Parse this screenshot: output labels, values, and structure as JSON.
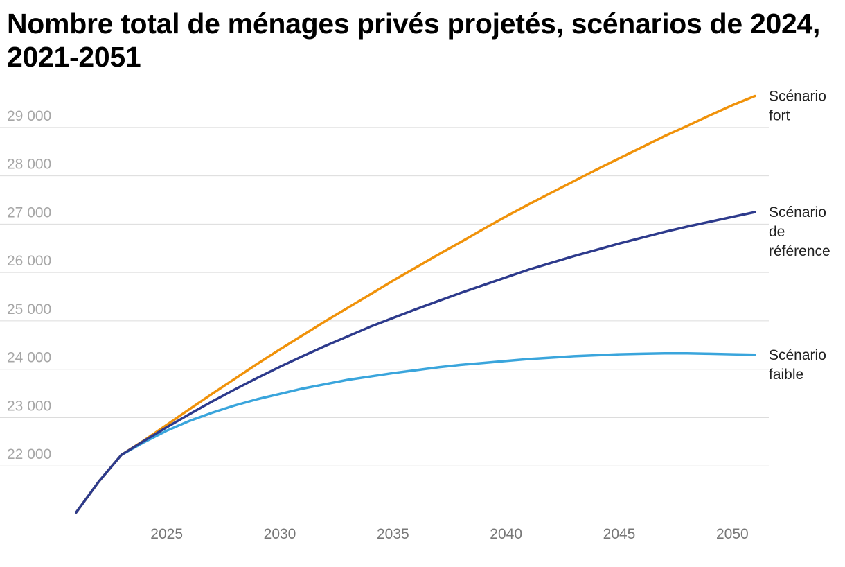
{
  "chart_data": {
    "type": "line",
    "title": "Nombre total de ménages privés projetés, scénarios de 2024, 2021-2051",
    "xlabel": "",
    "ylabel": "",
    "xlim": [
      2021,
      2051
    ],
    "ylim": [
      21000,
      29600
    ],
    "grid": true,
    "legend": "end-of-line labels",
    "y_ticks": [
      22000,
      23000,
      24000,
      25000,
      26000,
      27000,
      28000,
      29000
    ],
    "y_tick_labels": [
      "22 000",
      "23 000",
      "24 000",
      "25 000",
      "26 000",
      "27 000",
      "28 000",
      "29 000"
    ],
    "x_ticks": [
      2025,
      2030,
      2035,
      2040,
      2045,
      2050
    ],
    "x_tick_labels": [
      "2025",
      "2030",
      "2035",
      "2040",
      "2045",
      "2050"
    ],
    "x": [
      2021,
      2022,
      2023,
      2024,
      2025,
      2026,
      2027,
      2028,
      2029,
      2030,
      2031,
      2032,
      2033,
      2034,
      2035,
      2036,
      2037,
      2038,
      2039,
      2040,
      2041,
      2042,
      2043,
      2044,
      2045,
      2046,
      2047,
      2048,
      2049,
      2050,
      2051
    ],
    "series": [
      {
        "name": "Scénario fort",
        "label_lines": [
          "Scénario",
          "fort"
        ],
        "color": "#f0920a",
        "values": [
          21040,
          21680,
          22230,
          22530,
          22850,
          23170,
          23490,
          23800,
          24110,
          24410,
          24700,
          24990,
          25270,
          25550,
          25830,
          26100,
          26370,
          26630,
          26900,
          27160,
          27410,
          27650,
          27890,
          28130,
          28360,
          28590,
          28820,
          29030,
          29250,
          29460,
          29650
        ]
      },
      {
        "name": "Scénario de référence",
        "label_lines": [
          "Scénario",
          "de",
          "référence"
        ],
        "color": "#2d3a8c",
        "values": [
          21040,
          21680,
          22230,
          22520,
          22800,
          23070,
          23330,
          23580,
          23820,
          24050,
          24270,
          24480,
          24680,
          24880,
          25060,
          25240,
          25410,
          25580,
          25740,
          25900,
          26060,
          26200,
          26340,
          26470,
          26600,
          26720,
          26840,
          26950,
          27050,
          27150,
          27250
        ]
      },
      {
        "name": "Scénario faible",
        "label_lines": [
          "Scénario",
          "faible"
        ],
        "color": "#3aa5dc",
        "values": [
          21040,
          21680,
          22230,
          22490,
          22730,
          22930,
          23100,
          23250,
          23380,
          23490,
          23600,
          23690,
          23780,
          23850,
          23920,
          23980,
          24040,
          24090,
          24130,
          24170,
          24210,
          24240,
          24270,
          24290,
          24310,
          24320,
          24330,
          24330,
          24320,
          24310,
          24300
        ]
      }
    ]
  }
}
